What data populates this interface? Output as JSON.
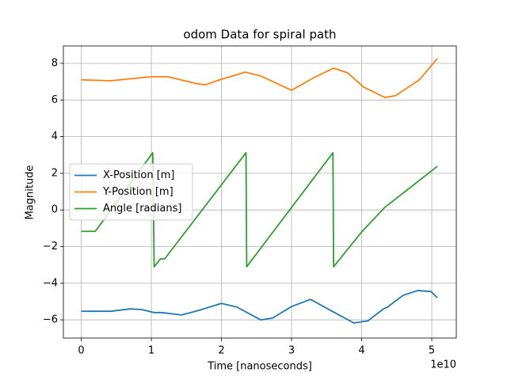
{
  "chart_data": {
    "type": "line",
    "title": "odom Data for spiral path",
    "x_label": "Time [nanoseconds]",
    "y_label": "Magnitude",
    "x_offset_label": "1e10",
    "xlim": [
      -2550000000.0,
      53500000000.0
    ],
    "ylim": [
      -6.99,
      8.95
    ],
    "xticks": [
      {
        "value": 0,
        "label": "0"
      },
      {
        "value": 10000000000.0,
        "label": "1"
      },
      {
        "value": 20000000000.0,
        "label": "2"
      },
      {
        "value": 30000000000.0,
        "label": "3"
      },
      {
        "value": 40000000000.0,
        "label": "4"
      },
      {
        "value": 50000000000.0,
        "label": "5"
      }
    ],
    "yticks": [
      {
        "value": -6,
        "label": "−6"
      },
      {
        "value": -4,
        "label": "−4"
      },
      {
        "value": -2,
        "label": "−2"
      },
      0,
      2,
      4,
      6,
      8
    ],
    "grid": true,
    "legend": "center left",
    "series": [
      {
        "name": "X-Position [m]",
        "color": "#1f77b4",
        "x": [
          0,
          4200000000.0,
          7000000000.0,
          8700000000.0,
          10400000000.0,
          11500000000.0,
          14300000000.0,
          16600000000.0,
          20000000000.0,
          22200000000.0,
          25600000000.0,
          27300000000.0,
          30000000000.0,
          32700000000.0,
          35800000000.0,
          38900000000.0,
          40900000000.0,
          43100000000.0,
          43700000000.0,
          45900000000.0,
          48000000000.0,
          49900000000.0,
          50800000000.0
        ],
        "values": [
          -5.53,
          -5.53,
          -5.4,
          -5.44,
          -5.6,
          -5.6,
          -5.73,
          -5.5,
          -5.1,
          -5.3,
          -6.0,
          -5.9,
          -5.27,
          -4.88,
          -5.53,
          -6.17,
          -6.05,
          -5.4,
          -5.3,
          -4.66,
          -4.4,
          -4.45,
          -4.8
        ]
      },
      {
        "name": "Y-Position [m]",
        "color": "#ff7f0e",
        "x": [
          0,
          4200000000.0,
          7600000000.0,
          10200000000.0,
          12300000000.0,
          16600000000.0,
          17700000000.0,
          20000000000.0,
          23400000000.0,
          25600000000.0,
          30000000000.0,
          33000000000.0,
          36000000000.0,
          38000000000.0,
          40300000000.0,
          43300000000.0,
          44800000000.0,
          48200000000.0,
          50800000000.0
        ],
        "values": [
          7.1,
          7.05,
          7.18,
          7.27,
          7.27,
          6.88,
          6.83,
          7.13,
          7.52,
          7.31,
          6.53,
          7.18,
          7.74,
          7.48,
          6.7,
          6.14,
          6.23,
          7.09,
          8.26
        ]
      },
      {
        "name": "Angle [radians]",
        "color": "#2ca02c",
        "x": [
          0,
          2000000000.0,
          10200000000.0,
          10400000000.0,
          11300000000.0,
          11900000000.0,
          23500000000.0,
          23600000000.0,
          35900000000.0,
          36000000000.0,
          40000000000.0,
          43300000000.0,
          50800000000.0
        ],
        "values": [
          -1.17,
          -1.17,
          3.12,
          -3.1,
          -2.67,
          -2.67,
          3.12,
          -3.1,
          3.12,
          -3.1,
          -1.2,
          0.14,
          2.38
        ]
      }
    ]
  }
}
